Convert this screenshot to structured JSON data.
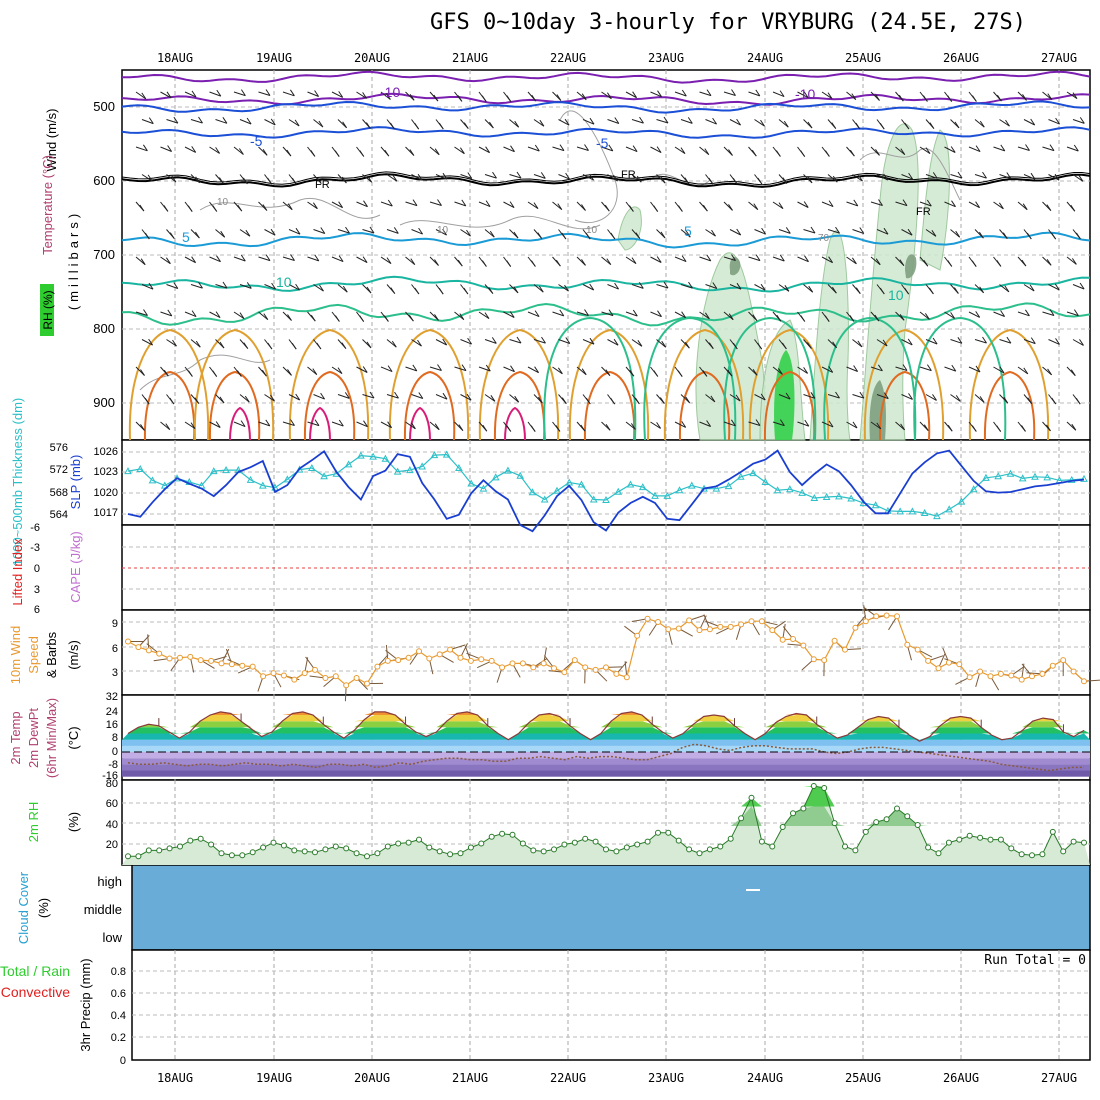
{
  "title": "GFS 0~10day 3-hourly for VRYBURG (24.5E, 27S)",
  "days": [
    "18AUG",
    "19AUG",
    "20AUG",
    "21AUG",
    "22AUG",
    "23AUG",
    "24AUG",
    "25AUG",
    "26AUG",
    "27AUG"
  ],
  "run_total": "Run Total = 0",
  "colors": {
    "temp_neg": "#7a1fb0",
    "temp_m5": "#1b4fd6",
    "temp_5": "#1b9bd6",
    "temp_10": "#19b5a0",
    "temp_15": "#2cbf8c",
    "temp_20": "#e0a030",
    "temp_25": "#e06a20",
    "temp_30": "#d81d78",
    "freezing": "#000000",
    "rh": "#2ecc2e",
    "slp": "#1a3fd0",
    "thickness": "#2cc0c8",
    "wind10m": "#e89a30",
    "cloud": "#6aacd8",
    "precip_total": "#2ecc2e",
    "precip_conv": "#e02020"
  },
  "chart_data": [
    {
      "type": "contour",
      "panel": "upper-air",
      "ylabels": [
        "Wind (m/s)",
        "Temperature (°C)",
        "RH (%)"
      ],
      "ylabel_axis": "(millibars)",
      "yticks": [
        "500",
        "600",
        "700",
        "800",
        "900"
      ],
      "ylim": [
        450,
        950
      ],
      "isotherms": [
        {
          "label": "-10",
          "level_mb": 490
        },
        {
          "label": "-5",
          "level_mb": 535
        },
        {
          "label": "FR",
          "level_mb": 600
        },
        {
          "label": "5",
          "level_mb": 680
        },
        {
          "label": "10",
          "level_mb": 735
        },
        {
          "label": "10",
          "level_mb": 775
        }
      ],
      "rh_labels": [
        "10",
        "10",
        "10",
        "70"
      ]
    },
    {
      "type": "line",
      "panel": "slp-thickness",
      "ylabel_left": "1000~500mb Thickness (dm)",
      "ylabel_right": "SLP (mb)",
      "yticks_left": [
        "564",
        "568",
        "572",
        "576"
      ],
      "yticks_right": [
        "1017",
        "1020",
        "1023",
        "1026"
      ],
      "ylim_left": [
        562,
        577
      ],
      "ylim_right": [
        1014,
        1028
      ],
      "series": [
        {
          "name": "SLP (mb)",
          "values": [
            1017,
            1016.6,
            1018.7,
            1020.6,
            1022.2,
            1021.4,
            1020.7,
            1019.6,
            1021.2,
            1023.1,
            1023.8,
            1024.7,
            1020.2,
            1021.2,
            1023.6,
            1024.8,
            1026.1,
            1023.1,
            1020.9,
            1019.1,
            1022.5,
            1023.3,
            1025.7,
            1025.3,
            1021.5,
            1019.1,
            1016.3,
            1016.9,
            1020,
            1021.9,
            1020.3,
            1019.1,
            1015.4,
            1014.5,
            1016.8,
            1019.6,
            1021.1,
            1019,
            1015.8,
            1014.6,
            1017.2,
            1018.6,
            1019.5,
            1018.6,
            1016.3,
            1016.1,
            1018.4,
            1020.7,
            1021,
            1022,
            1023.1,
            1024.3,
            1024.9,
            1026.2,
            1023.1,
            1021.2,
            1022.8,
            1024.2,
            1023.2,
            1021.2,
            1018.8,
            1017.1,
            1017.1,
            1020,
            1022.9,
            1024.5,
            1025.8,
            1026.2,
            1024,
            1021.8,
            1020.3,
            1020.1,
            1020.2,
            1020.6,
            1021,
            1021.2,
            1021.5,
            1021.8,
            1022
          ]
        },
        {
          "name": "1000~500mb Thickness (dm)",
          "values": [
            572.3,
            572.7,
            570.5,
            569.5,
            570.9,
            570.2,
            569.5,
            572.3,
            572.5,
            572.5,
            570.6,
            569.5,
            569.1,
            570.7,
            572.6,
            572.9,
            571.3,
            571.8,
            573.6,
            575.3,
            575.1,
            574.7,
            572.2,
            572.5,
            573.2,
            575.4,
            575.5,
            572.9,
            569.9,
            568.9,
            571.1,
            572.4,
            571.4,
            568.2,
            566.8,
            568.5,
            570.1,
            569.7,
            566.8,
            566.7,
            568.3,
            569.7,
            569.2,
            567.5,
            567.5,
            568.6,
            569.5,
            568.9,
            568.9,
            569.4,
            571.2,
            571.9,
            570.2,
            568.6,
            568.8,
            568.1,
            567.1,
            567.3,
            567.4,
            567,
            566.1,
            565.7,
            564.6,
            564.5,
            564.5,
            564.2,
            563.6,
            564.9,
            566.4,
            568.8,
            571,
            571.3,
            571.8,
            570.9,
            571.2,
            571.1,
            570.5,
            570.6,
            570.8
          ]
        }
      ]
    },
    {
      "type": "line",
      "panel": "lifted-index-cape",
      "ylabel_left": "Lifted Index",
      "ylabel_right": "CAPE (J/kg)",
      "yticks": [
        "-6",
        "-3",
        "0",
        "3",
        "6"
      ],
      "ylim": [
        -6,
        6
      ],
      "series": [
        {
          "name": "Lifted Index",
          "values": [
            0
          ]
        }
      ]
    },
    {
      "type": "line",
      "panel": "10m-wind",
      "ylabels": [
        "10m Wind",
        "Speed",
        "& Barbs"
      ],
      "yunit": "(m/s)",
      "yticks": [
        "3",
        "6",
        "9"
      ],
      "ylim": [
        0,
        11
      ],
      "series": [
        {
          "name": "Speed",
          "values": [
            6.6,
            5.9,
            5.5,
            5.1,
            4.5,
            4.6,
            4.7,
            4.3,
            4.2,
            3.9,
            3.8,
            3.6,
            3.5,
            2.3,
            2.7,
            2.4,
            1.9,
            2.7,
            3.1,
            2.1,
            2.3,
            1.2,
            2.1,
            1.4,
            3.5,
            4.2,
            4.3,
            4.6,
            5.4,
            4.5,
            5,
            5.6,
            4.6,
            4.2,
            4.4,
            4.2,
            3.4,
            3.9,
            3.9,
            3.4,
            3.9,
            3.3,
            2.8,
            4.3,
            3.4,
            3.1,
            3.4,
            2.6,
            2.2,
            7.3,
            9.4,
            9,
            8.1,
            8.2,
            9.2,
            8,
            8.1,
            8.4,
            8.4,
            8.7,
            9.1,
            9.1,
            8,
            6.8,
            6.9,
            6.1,
            4.4,
            4.3,
            6.7,
            5.6,
            8.3,
            9.1,
            9.7,
            9.8,
            9.7,
            6.2,
            5.6,
            4.2,
            3.3,
            4,
            3.8,
            2.2,
            2.9,
            2.3,
            2.6,
            2.4,
            1.9,
            2.3,
            2.6,
            3.6,
            4.3,
            2.9,
            1.7
          ]
        }
      ]
    },
    {
      "type": "area",
      "panel": "2m-temp",
      "ylabels": [
        "2m Temp",
        "2m DewPt",
        "(6hr Min/Max)"
      ],
      "yunit": "(°C)",
      "yticks": [
        "-16",
        "-8",
        "0",
        "8",
        "16",
        "24",
        "32"
      ],
      "ylim": [
        -16,
        32
      ],
      "series": [
        {
          "name": "2m Temp",
          "values": [
            12,
            16,
            18,
            17,
            13,
            9,
            13,
            20,
            24,
            26,
            25,
            20,
            15,
            10,
            13,
            20,
            25,
            26,
            24,
            18,
            13,
            9,
            14,
            21,
            26,
            26,
            24,
            18,
            13,
            10,
            13,
            20,
            25,
            26,
            24,
            17,
            12,
            8,
            12,
            19,
            24,
            25,
            23,
            17,
            12,
            8,
            12,
            20,
            25,
            26,
            24,
            18,
            13,
            9,
            12,
            18,
            23,
            24,
            23,
            17,
            12,
            8,
            12,
            19,
            23,
            25,
            24,
            18,
            13,
            9,
            11,
            16,
            21,
            23,
            22,
            16,
            11,
            7,
            10,
            17,
            22,
            23,
            22,
            16,
            11,
            8,
            9,
            14,
            20,
            22,
            21,
            13,
            10,
            14
          ]
        },
        {
          "name": "2m DewPt",
          "values": [
            -7,
            -8,
            -8,
            -7,
            -8,
            -9,
            -8,
            -8,
            -9,
            -8,
            -7,
            -8,
            -8,
            -9,
            -8,
            -9,
            -10,
            -8,
            -8,
            -9,
            -8,
            -10,
            -9,
            -7,
            -8,
            -6,
            -5,
            -4,
            -4,
            -5,
            -5,
            -6,
            -6,
            -4,
            -4,
            -3,
            -4,
            -5,
            -3,
            -4,
            -3,
            -3,
            -4,
            -5,
            -5,
            -3,
            -1,
            3,
            5,
            4,
            2,
            1,
            3,
            4,
            4,
            3,
            2,
            2,
            2,
            0,
            -1,
            0,
            2,
            3,
            3,
            2,
            1,
            0,
            -1,
            -2,
            -3,
            -4,
            -5,
            -6,
            -8,
            -9,
            -10,
            -11,
            -12,
            -11,
            -10,
            -10
          ]
        }
      ]
    },
    {
      "type": "area",
      "panel": "2m-rh",
      "ylabels": [
        "2m RH"
      ],
      "yunit": "(%)",
      "yticks": [
        "20",
        "40",
        "60",
        "80"
      ],
      "ylim": [
        0,
        90
      ],
      "series": [
        {
          "name": "2m RH",
          "values": [
            9,
            9,
            15,
            15,
            17,
            19,
            25,
            27,
            21,
            12,
            10,
            10,
            13,
            18,
            23,
            20,
            15,
            14,
            13,
            16,
            19,
            17,
            12,
            9,
            12,
            19,
            22,
            23,
            26,
            18,
            14,
            11,
            12,
            18,
            22,
            29,
            32,
            31,
            22,
            15,
            14,
            16,
            21,
            23,
            27,
            24,
            16,
            14,
            18,
            21,
            24,
            33,
            33,
            25,
            16,
            12,
            16,
            19,
            27,
            48,
            69,
            24,
            19,
            39,
            53,
            58,
            81,
            79,
            43,
            19,
            15,
            34,
            44,
            47,
            58,
            50,
            41,
            18,
            12,
            23,
            26,
            30,
            28,
            26,
            26,
            17,
            11,
            10,
            11,
            34,
            14,
            24,
            23
          ]
        }
      ]
    },
    {
      "type": "heatmap",
      "panel": "cloud-cover",
      "ylabel": "Cloud Cover",
      "yunit": "(%)",
      "levels": [
        "high",
        "middle",
        "low"
      ],
      "values": [
        0
      ]
    },
    {
      "type": "bar",
      "panel": "3hr-precip",
      "ylabels": [
        "Total / Rain",
        "Convective"
      ],
      "ylabel_axis": "3hr Precip (mm)",
      "yticks": [
        "0",
        "0.2",
        "0.4",
        "0.6",
        "0.8"
      ],
      "ylim": [
        0,
        0.9
      ],
      "series": [
        {
          "name": "Total / Rain",
          "values": [
            0
          ]
        },
        {
          "name": "Convective",
          "values": [
            0
          ]
        }
      ]
    }
  ]
}
